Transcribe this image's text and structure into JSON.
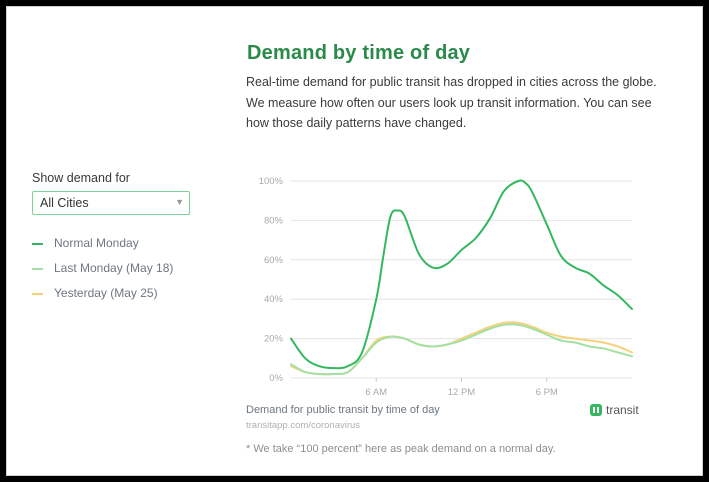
{
  "header": {
    "title": "Demand by time of day",
    "description_lines": [
      "Real-time demand for public transit has dropped in cities across the globe.",
      "We measure how often our users look up transit information. You can see",
      "how those daily patterns have changed."
    ]
  },
  "sidebar": {
    "show_label": "Show demand for",
    "select": {
      "value": "All Cities"
    },
    "legend": [
      {
        "label": "Normal Monday",
        "color": "#34b760"
      },
      {
        "label": "Last Monday (May 18)",
        "color": "#a3e0a3"
      },
      {
        "label": "Yesterday (May 25)",
        "color": "#f5d27a"
      }
    ]
  },
  "footer": {
    "caption": "Demand for public transit by time of day",
    "source": "transitapp.com/coronavirus",
    "logo_text": "transit",
    "footnote": "* We take “100 percent” here as peak demand on a normal day."
  },
  "colors": {
    "title": "#2a8a4a",
    "grid": "#e4e4e4",
    "axis_text": "#aaaaaa"
  },
  "chart_data": {
    "type": "line",
    "title": "",
    "xlabel": "",
    "ylabel": "",
    "xlim": [
      0,
      24
    ],
    "ylim": [
      0,
      100
    ],
    "y_ticks": [
      0,
      20,
      40,
      60,
      80,
      100
    ],
    "y_tick_labels": [
      "0%",
      "20%",
      "40%",
      "60%",
      "80%",
      "100%"
    ],
    "x_ticks": [
      6,
      12,
      18
    ],
    "x_tick_labels": [
      "6 AM",
      "12 PM",
      "6 PM"
    ],
    "grid": true,
    "series": [
      {
        "name": "Normal Monday",
        "color": "#34b760",
        "x": [
          0,
          1,
          2,
          3,
          4,
          5,
          6,
          6.5,
          7,
          7.5,
          8,
          9,
          10,
          11,
          12,
          13,
          14,
          15,
          16,
          16.5,
          17,
          18,
          19,
          20,
          21,
          22,
          23,
          24
        ],
        "y": [
          20,
          10,
          6,
          5,
          6,
          13,
          40,
          62,
          82,
          85,
          82,
          63,
          56,
          58,
          65,
          71,
          81,
          95,
          100,
          99,
          94,
          78,
          62,
          56,
          53,
          47,
          42,
          35
        ]
      },
      {
        "name": "Last Monday (May 18)",
        "color": "#a3e0a3",
        "x": [
          0,
          1,
          2,
          3,
          4,
          5,
          6,
          7,
          8,
          9,
          10,
          11,
          12,
          13,
          14,
          15,
          16,
          17,
          18,
          19,
          20,
          21,
          22,
          23,
          24
        ],
        "y": [
          7,
          3,
          2,
          2,
          3,
          10,
          18,
          21,
          20,
          17,
          16,
          17,
          19,
          22,
          25,
          27,
          27,
          25,
          22,
          19,
          18,
          16,
          15,
          13,
          11
        ]
      },
      {
        "name": "Yesterday (May 25)",
        "color": "#f5d27a",
        "x": [
          0,
          1,
          2,
          3,
          4,
          5,
          6,
          7,
          8,
          9,
          10,
          11,
          12,
          13,
          14,
          15,
          16,
          17,
          18,
          19,
          20,
          21,
          22,
          23,
          24
        ],
        "y": [
          6,
          3,
          2,
          2,
          3,
          10,
          19,
          21,
          20,
          17,
          16,
          17,
          20,
          23,
          26,
          28,
          28,
          26,
          23,
          21,
          20,
          19,
          18,
          16,
          13
        ]
      }
    ]
  }
}
